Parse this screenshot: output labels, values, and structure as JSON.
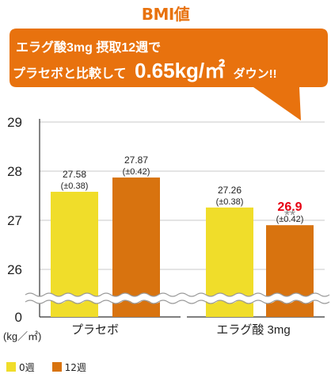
{
  "title": "BMI値",
  "callout": {
    "line1": "エラグ酸3mg 摂取12週で",
    "line2_prefix": "プラセボと比較して",
    "line2_value": "0.65kg/㎡",
    "line2_suffix": "ダウン!!"
  },
  "colors": {
    "week0": "#f0dd2a",
    "week12": "#d8730f",
    "callout": "#e8720e",
    "highlight": "#e60012",
    "text": "#222222",
    "axis": "#333333",
    "grid": "#c8c8c8"
  },
  "chart_data": {
    "type": "bar",
    "title": "BMI値",
    "ylabel": "(kg／㎡)",
    "ylim": [
      26,
      29
    ],
    "y_ticks": [
      "0",
      "26",
      "27",
      "28",
      "29"
    ],
    "axis_break": true,
    "categories": [
      "プラセボ",
      "エラグ酸 3mg"
    ],
    "legend_position": "bottom-left",
    "series": [
      {
        "name": "0週",
        "color": "#f0dd2a",
        "values": [
          27.58,
          27.26
        ],
        "labels": [
          "27.58",
          "27.26"
        ],
        "sd": [
          "(±0.38)",
          "(±0.38)"
        ]
      },
      {
        "name": "12週",
        "color": "#d8730f",
        "values": [
          27.87,
          26.9
        ],
        "labels": [
          "27.87",
          "26.9"
        ],
        "sd": [
          "(±0.42)",
          "(±0.42)"
        ]
      }
    ],
    "significance": [
      "",
      "**"
    ]
  }
}
